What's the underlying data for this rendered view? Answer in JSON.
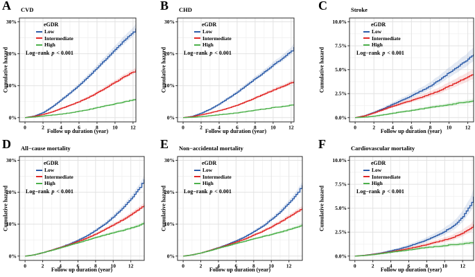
{
  "figure_caption": "Cumulative hazard curves by eGDR group",
  "legend": {
    "title": "eGDR",
    "entries": [
      {
        "label": "Low",
        "color": "#2b5ba8"
      },
      {
        "label": "Intermediate",
        "color": "#e12725"
      },
      {
        "label": "High",
        "color": "#4db14b"
      }
    ]
  },
  "annotation": {
    "prefix": "Log−rank ",
    "p": "p",
    "suffix": " < 0.001"
  },
  "colors": {
    "low": "#2b5ba8",
    "intermediate": "#e12725",
    "high": "#4db14b",
    "grid_major": "#e2e2e2",
    "grid_minor": "#f1f1f1",
    "border": "#2a2a2a"
  },
  "chart_data": [
    {
      "type": "line",
      "panel_label": "A",
      "title": "CVD",
      "xlabel": "Follow up duration (year)",
      "ylabel": "Cumulative hazard",
      "legend_position": "top-left-inside",
      "grid": true,
      "xticks": [
        0,
        2,
        4,
        6,
        8,
        10,
        12
      ],
      "ytick_values": [
        0,
        10,
        20,
        30
      ],
      "ytick_labels": [
        "0%",
        "10%",
        "20%",
        "30%"
      ],
      "ylim": [
        0,
        30
      ],
      "xlim": [
        0,
        12.3
      ],
      "x": [
        0,
        1,
        2,
        3,
        4,
        5,
        6,
        7,
        8,
        9,
        10,
        11,
        12,
        12.3
      ],
      "series": [
        {
          "name": "Low",
          "values": [
            0,
            0.5,
            1.6,
            3.4,
            5.6,
            7.8,
            10.2,
            12.8,
            15.6,
            18.5,
            21.4,
            24.2,
            26.8,
            27.9
          ]
        },
        {
          "name": "Intermediate",
          "values": [
            0,
            0.4,
            1.0,
            1.8,
            2.9,
            3.9,
            5.0,
            6.3,
            7.8,
            9.4,
            11.1,
            12.8,
            14.3,
            15.0
          ]
        },
        {
          "name": "High",
          "values": [
            0,
            0.2,
            0.5,
            0.8,
            1.1,
            1.5,
            2.0,
            2.5,
            3.1,
            3.7,
            4.3,
            4.9,
            5.5,
            5.8
          ]
        }
      ]
    },
    {
      "type": "line",
      "panel_label": "B",
      "title": "CHD",
      "xlabel": "Follow up duration (year)",
      "ylabel": "Cumulative hazard",
      "legend_position": "top-left-inside",
      "grid": true,
      "xticks": [
        0,
        2,
        4,
        6,
        8,
        10,
        12
      ],
      "ytick_values": [
        0,
        10,
        20,
        30
      ],
      "ytick_labels": [
        "0%",
        "10%",
        "20%",
        "30%"
      ],
      "ylim": [
        0,
        30
      ],
      "xlim": [
        0,
        12.3
      ],
      "x": [
        0,
        1,
        2,
        3,
        4,
        5,
        6,
        7,
        8,
        9,
        10,
        11,
        12,
        12.3
      ],
      "series": [
        {
          "name": "Low",
          "values": [
            0,
            0.4,
            1.4,
            2.7,
            4.3,
            6.1,
            8.0,
            10.1,
            12.2,
            14.3,
            16.5,
            18.6,
            20.9,
            22.1
          ]
        },
        {
          "name": "Intermediate",
          "values": [
            0,
            0.3,
            0.9,
            1.5,
            2.2,
            3.0,
            3.9,
            5.0,
            6.2,
            7.4,
            8.6,
            9.8,
            10.9,
            11.3
          ]
        },
        {
          "name": "High",
          "values": [
            0,
            0.1,
            0.3,
            0.6,
            0.9,
            1.2,
            1.5,
            1.9,
            2.3,
            2.7,
            3.1,
            3.5,
            3.9,
            4.1
          ]
        }
      ]
    },
    {
      "type": "line",
      "panel_label": "C",
      "title": "Stroke",
      "xlabel": "Follow up duration (year)",
      "ylabel": "Cumulative hazard",
      "legend_position": "top-left-inside",
      "grid": true,
      "xticks": [
        0,
        2,
        4,
        6,
        8,
        10,
        12
      ],
      "ytick_values": [
        0,
        2.5,
        5,
        7.5,
        10
      ],
      "ytick_labels": [
        "0.0%",
        "2.5%",
        "5.0%",
        "7.5%",
        "10.0%"
      ],
      "ylim": [
        0,
        10
      ],
      "xlim": [
        0,
        12.6
      ],
      "x": [
        0,
        1,
        2,
        3,
        4,
        5,
        6,
        7,
        8,
        9,
        10,
        11,
        12,
        12.6
      ],
      "series": [
        {
          "name": "Low",
          "values": [
            0,
            0.2,
            0.55,
            0.95,
            1.4,
            1.85,
            2.3,
            2.8,
            3.3,
            4.0,
            4.7,
            5.4,
            6.1,
            6.6
          ]
        },
        {
          "name": "Intermediate",
          "values": [
            0,
            0.18,
            0.5,
            0.85,
            1.2,
            1.5,
            1.8,
            2.1,
            2.45,
            2.85,
            3.3,
            3.8,
            4.25,
            4.5
          ]
        },
        {
          "name": "High",
          "values": [
            0,
            0.05,
            0.15,
            0.3,
            0.45,
            0.6,
            0.75,
            0.9,
            1.05,
            1.2,
            1.35,
            1.5,
            1.65,
            1.8
          ]
        }
      ]
    },
    {
      "type": "line",
      "panel_label": "D",
      "title": "All−cause mortality",
      "xlabel": "Follow up duration (year)",
      "ylabel": "Cumulative hazard",
      "legend_position": "top-left-inside",
      "grid": true,
      "xticks": [
        0,
        2,
        4,
        6,
        8,
        10,
        12
      ],
      "ytick_values": [
        0,
        10,
        20,
        30
      ],
      "ytick_labels": [
        "0%",
        "10%",
        "20%",
        "30%"
      ],
      "ylim": [
        0,
        30
      ],
      "xlim": [
        0,
        13.5
      ],
      "x": [
        0,
        1,
        2,
        3,
        4,
        5,
        6,
        7,
        8,
        9,
        10,
        11,
        12,
        13,
        13.5
      ],
      "series": [
        {
          "name": "Low",
          "values": [
            0,
            0.4,
            1.1,
            1.9,
            2.8,
            3.8,
            5.0,
            6.4,
            8.1,
            10.0,
            12.3,
            14.9,
            17.9,
            21.5,
            24.0
          ]
        },
        {
          "name": "Intermediate",
          "values": [
            0,
            0.4,
            1.1,
            1.9,
            2.7,
            3.6,
            4.6,
            5.7,
            6.9,
            8.3,
            9.8,
            11.3,
            13.0,
            14.9,
            15.9
          ]
        },
        {
          "name": "High",
          "values": [
            0,
            0.4,
            1.1,
            1.8,
            2.6,
            3.4,
            4.2,
            5.0,
            5.8,
            6.6,
            7.3,
            8.0,
            8.8,
            9.7,
            10.5
          ]
        }
      ]
    },
    {
      "type": "line",
      "panel_label": "E",
      "title": "Non−accidental mortality",
      "xlabel": "Follow up duration (year)",
      "ylabel": "Cumulative hazard",
      "legend_position": "top-left-inside",
      "grid": true,
      "xticks": [
        0,
        2,
        4,
        6,
        8,
        10,
        12
      ],
      "ytick_values": [
        0,
        10,
        20,
        30
      ],
      "ytick_labels": [
        "0%",
        "10%",
        "20%",
        "30%"
      ],
      "ylim": [
        0,
        30
      ],
      "xlim": [
        0,
        13.5
      ],
      "x": [
        0,
        1,
        2,
        3,
        4,
        5,
        6,
        7,
        8,
        9,
        10,
        11,
        12,
        13,
        13.5
      ],
      "series": [
        {
          "name": "Low",
          "values": [
            0,
            0.4,
            1.0,
            1.8,
            2.7,
            3.7,
            4.8,
            6.1,
            7.7,
            9.4,
            11.5,
            13.9,
            16.7,
            20.0,
            22.2
          ]
        },
        {
          "name": "Intermediate",
          "values": [
            0,
            0.4,
            1.0,
            1.8,
            2.6,
            3.5,
            4.4,
            5.4,
            6.6,
            7.8,
            9.2,
            10.7,
            12.4,
            14.1,
            15.0
          ]
        },
        {
          "name": "High",
          "values": [
            0,
            0.4,
            1.0,
            1.7,
            2.5,
            3.2,
            4.0,
            4.7,
            5.4,
            6.1,
            6.8,
            7.5,
            8.3,
            9.1,
            9.9
          ]
        }
      ]
    },
    {
      "type": "line",
      "panel_label": "F",
      "title": "Cardiovascular mortality",
      "xlabel": "Follow up duration (year)",
      "ylabel": "Cumulative hazard",
      "legend_position": "top-left-inside",
      "grid": true,
      "xticks": [
        0,
        2,
        4,
        6,
        8,
        10,
        12
      ],
      "ytick_values": [
        0,
        2.5,
        5,
        7.5,
        10
      ],
      "ytick_labels": [
        "0.0%",
        "2.5%",
        "5.0%",
        "7.5%",
        "10.0%"
      ],
      "ylim": [
        0,
        10
      ],
      "xlim": [
        0,
        13.2
      ],
      "x": [
        0,
        1,
        2,
        3,
        4,
        5,
        6,
        7,
        8,
        9,
        10,
        11,
        12,
        13,
        13.2
      ],
      "series": [
        {
          "name": "Low",
          "values": [
            0,
            0.08,
            0.2,
            0.35,
            0.55,
            0.78,
            1.05,
            1.35,
            1.7,
            2.1,
            2.6,
            3.2,
            4.1,
            5.6,
            6.2
          ]
        },
        {
          "name": "Intermediate",
          "values": [
            0,
            0.07,
            0.18,
            0.3,
            0.45,
            0.62,
            0.8,
            1.0,
            1.2,
            1.45,
            1.7,
            2.0,
            2.4,
            3.0,
            3.3
          ]
        },
        {
          "name": "High",
          "values": [
            0,
            0.06,
            0.15,
            0.27,
            0.4,
            0.52,
            0.65,
            0.78,
            0.9,
            1.0,
            1.1,
            1.2,
            1.28,
            1.38,
            1.42
          ]
        }
      ]
    }
  ]
}
